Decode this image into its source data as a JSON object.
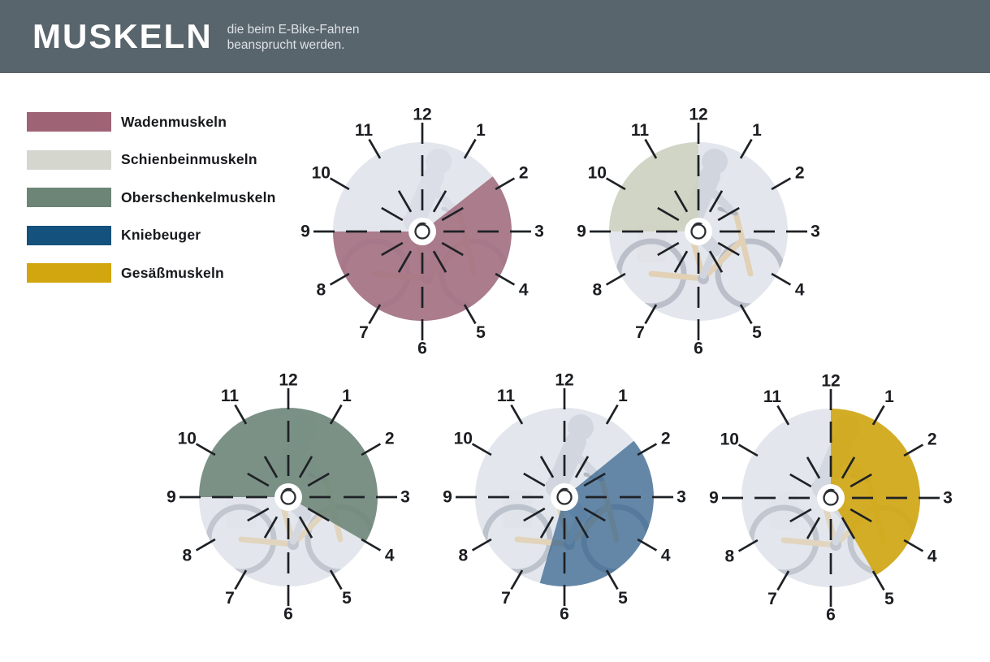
{
  "header": {
    "title": "MUSKELN",
    "subtitle_line1": "die beim E-Bike-Fahren",
    "subtitle_line2": "beansprucht werden.",
    "background": "#59656d"
  },
  "legend": {
    "items": [
      {
        "label": "Wadenmuskeln",
        "color": "#9e6476"
      },
      {
        "label": "Schienbeinmuskeln",
        "color": "#d5d7cf"
      },
      {
        "label": "Oberschenkelmuskeln",
        "color": "#6c8577"
      },
      {
        "label": "Kniebeuger",
        "color": "#15517d"
      },
      {
        "label": "Gesäßmuskeln",
        "color": "#d2a60f"
      }
    ]
  },
  "clock_face": {
    "numbers": [
      "12",
      "1",
      "2",
      "3",
      "4",
      "5",
      "6",
      "7",
      "8",
      "9",
      "10",
      "11"
    ],
    "base_color": "#e3e7ed",
    "tick_color": "#1e2125",
    "number_color": "#1b1d21",
    "photo_colors": {
      "person": "#c5cad3",
      "bike": "#e2c392",
      "wheel": "#9fa6b1",
      "bag": "#dfe2e7"
    }
  },
  "chart_data": {
    "type": "pie",
    "title": "Muskeln, die beim E-Bike-Fahren beansprucht werden",
    "legend_position": "top-left",
    "clocks": [
      {
        "muscle": "Wadenmuskeln",
        "color": "#9e6476",
        "overlay_opacity": 0.82,
        "photo_opacity": 0.28,
        "start_deg": 52,
        "end_deg": 270,
        "active_from": "ca. 1:45",
        "active_to": "9:00"
      },
      {
        "muscle": "Schienbeinmuskeln",
        "color": "#cdd1bc",
        "overlay_opacity": 0.82,
        "photo_opacity": 0.6,
        "start_deg": 270,
        "end_deg": 360,
        "active_from": "9:00",
        "active_to": "12:00"
      },
      {
        "muscle": "Oberschenkelmuskeln",
        "color": "#6c8577",
        "overlay_opacity": 0.88,
        "photo_opacity": 0.5,
        "start_deg": 270,
        "end_deg": 480,
        "active_from": "9:00",
        "active_to": "4:00"
      },
      {
        "muscle": "Kniebeuger",
        "color": "#1c5280",
        "overlay_opacity": 0.64,
        "photo_opacity": 0.55,
        "start_deg": 51,
        "end_deg": 196,
        "active_from": "ca. 1:45",
        "active_to": "ca. 6:30"
      },
      {
        "muscle": "Gesäßmuskeln",
        "color": "#d2a60f",
        "overlay_opacity": 0.9,
        "photo_opacity": 0.5,
        "start_deg": 0,
        "end_deg": 150,
        "active_from": "12:00",
        "active_to": "5:00"
      }
    ]
  }
}
